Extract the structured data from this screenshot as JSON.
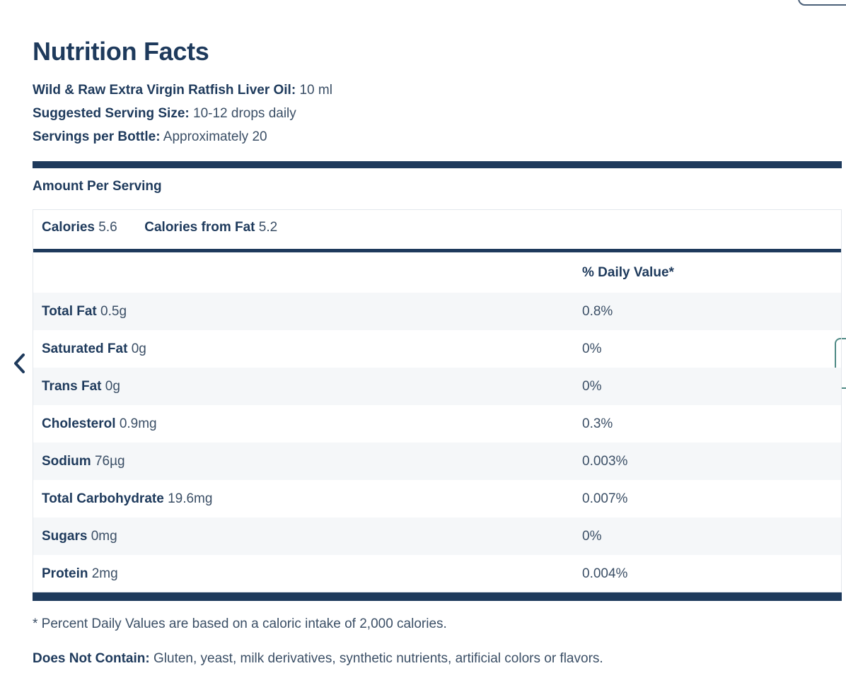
{
  "title": "Nutrition Facts",
  "product": {
    "label": "Wild & Raw Extra Virgin Ratfish Liver Oil:",
    "value": "10 ml"
  },
  "serving_size": {
    "label": "Suggested Serving Size:",
    "value": "10-12 drops daily"
  },
  "servings": {
    "label": "Servings per Bottle:",
    "value": "Approximately 20"
  },
  "amount_per_serving": "Amount Per Serving",
  "calories": {
    "label": "Calories",
    "value": "5.6"
  },
  "calories_fat": {
    "label": "Calories from Fat",
    "value": "5.2"
  },
  "dv_header": "% Daily Value*",
  "nutrients": [
    {
      "name": "Total Fat",
      "amount": "0.5g",
      "dv": "0.8%"
    },
    {
      "name": "Saturated Fat",
      "amount": "0g",
      "dv": "0%"
    },
    {
      "name": "Trans Fat",
      "amount": "0g",
      "dv": "0%"
    },
    {
      "name": "Cholesterol",
      "amount": "0.9mg",
      "dv": "0.3%"
    },
    {
      "name": "Sodium",
      "amount": "76µg",
      "dv": "0.003%"
    },
    {
      "name": "Total Carbohydrate",
      "amount": "19.6mg",
      "dv": "0.007%"
    },
    {
      "name": "Sugars",
      "amount": "0mg",
      "dv": "0%"
    },
    {
      "name": "Protein",
      "amount": "2mg",
      "dv": "0.004%"
    }
  ],
  "footnote": "* Percent Daily Values are based on a caloric intake of 2,000 calories.",
  "does_not_contain": {
    "label": "Does Not Contain:",
    "value": "Gluten, yeast, milk derivatives, synthetic nutrients, artificial colors or flavors."
  },
  "icons": {
    "prev": "chevron-left-icon"
  },
  "colors": {
    "primary": "#1e3a5c",
    "text": "#3b4f66",
    "row_shade": "#f5f7f9",
    "side_tab_border": "#4f8a85"
  }
}
